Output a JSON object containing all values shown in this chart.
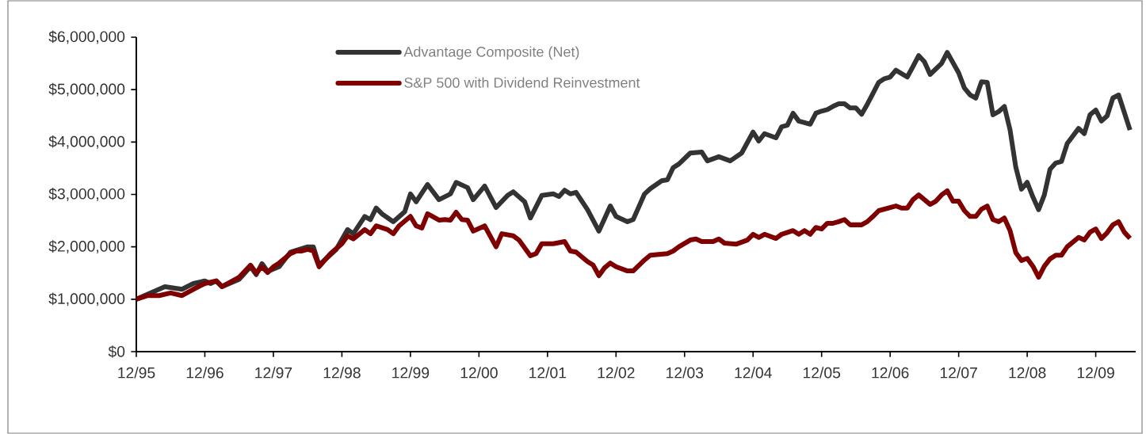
{
  "chart_data": {
    "type": "line",
    "xlim": [
      "1995-12",
      "2010-07"
    ],
    "ylim": [
      0,
      6000000
    ],
    "xticks": [
      {
        "value": "1995-12",
        "label": "12/95"
      },
      {
        "value": "1996-12",
        "label": "12/96"
      },
      {
        "value": "1997-12",
        "label": "12/97"
      },
      {
        "value": "1998-12",
        "label": "12/98"
      },
      {
        "value": "1999-12",
        "label": "12/99"
      },
      {
        "value": "2000-12",
        "label": "12/00"
      },
      {
        "value": "2001-12",
        "label": "12/01"
      },
      {
        "value": "2002-12",
        "label": "12/02"
      },
      {
        "value": "2003-12",
        "label": "12/03"
      },
      {
        "value": "2004-12",
        "label": "12/04"
      },
      {
        "value": "2005-12",
        "label": "12/05"
      },
      {
        "value": "2006-12",
        "label": "12/06"
      },
      {
        "value": "2007-12",
        "label": "12/07"
      },
      {
        "value": "2008-12",
        "label": "12/08"
      },
      {
        "value": "2009-12",
        "label": "12/09"
      }
    ],
    "yticks": [
      {
        "value": 0,
        "label": "$0"
      },
      {
        "value": 1000000,
        "label": "$1,000,000"
      },
      {
        "value": 2000000,
        "label": "$2,000,000"
      },
      {
        "value": 3000000,
        "label": "$3,000,000"
      },
      {
        "value": 4000000,
        "label": "$4,000,000"
      },
      {
        "value": 5000000,
        "label": "$5,000,000"
      },
      {
        "value": 6000000,
        "label": "$6,000,000"
      }
    ],
    "legend": "top",
    "series": [
      {
        "name": "Advantage Composite (Net)",
        "color": "#333333",
        "x": [
          "1995-12",
          "1996-05",
          "1996-08",
          "1996-10",
          "1996-12",
          "1997-01",
          "1997-02",
          "1997-03",
          "1997-06",
          "1997-08",
          "1997-09",
          "1997-10",
          "1997-11",
          "1998-01",
          "1998-03",
          "1998-06",
          "1998-07",
          "1998-08",
          "1998-11",
          "1999-01",
          "1999-02",
          "1999-04",
          "1999-05",
          "1999-06",
          "1999-07",
          "1999-09",
          "1999-11",
          "1999-12",
          "2000-01",
          "2000-03",
          "2000-05",
          "2000-07",
          "2000-08",
          "2000-10",
          "2000-11",
          "2001-01",
          "2001-03",
          "2001-05",
          "2001-06",
          "2001-08",
          "2001-09",
          "2001-11",
          "2002-01",
          "2002-02",
          "2002-03",
          "2002-04",
          "2002-05",
          "2002-07",
          "2002-09",
          "2002-11",
          "2002-12",
          "2003-02",
          "2003-03",
          "2003-05",
          "2003-06",
          "2003-08",
          "2003-09",
          "2003-10",
          "2003-11",
          "2004-01",
          "2004-03",
          "2004-04",
          "2004-06",
          "2004-08",
          "2004-10",
          "2004-12",
          "2005-01",
          "2005-02",
          "2005-04",
          "2005-05",
          "2005-06",
          "2005-07",
          "2005-08",
          "2005-10",
          "2005-11",
          "2005-12",
          "2006-01",
          "2006-02",
          "2006-03",
          "2006-04",
          "2006-05",
          "2006-06",
          "2006-07",
          "2006-08",
          "2006-09",
          "2006-10",
          "2006-11",
          "2006-12",
          "2007-01",
          "2007-03",
          "2007-04",
          "2007-05",
          "2007-06",
          "2007-07",
          "2007-09",
          "2007-10",
          "2007-12",
          "2008-01",
          "2008-02",
          "2008-03",
          "2008-04",
          "2008-05",
          "2008-06",
          "2008-07",
          "2008-08",
          "2008-09",
          "2008-10",
          "2008-11",
          "2008-12",
          "2009-01",
          "2009-02",
          "2009-03",
          "2009-04",
          "2009-05",
          "2009-06",
          "2009-07",
          "2009-09",
          "2009-10",
          "2009-11",
          "2009-12",
          "2010-01",
          "2010-02",
          "2010-03",
          "2010-04",
          "2010-06"
        ],
        "values": [
          1000000,
          1240000,
          1190000,
          1300000,
          1350000,
          1300000,
          1350000,
          1240000,
          1380000,
          1620000,
          1470000,
          1680000,
          1530000,
          1620000,
          1900000,
          2000000,
          2000000,
          1650000,
          1950000,
          2330000,
          2250000,
          2580000,
          2520000,
          2740000,
          2630000,
          2480000,
          2670000,
          3010000,
          2860000,
          3190000,
          2900000,
          3010000,
          3230000,
          3130000,
          2900000,
          3160000,
          2750000,
          2980000,
          3050000,
          2860000,
          2550000,
          2980000,
          3010000,
          2960000,
          3080000,
          3010000,
          3040000,
          2710000,
          2300000,
          2780000,
          2580000,
          2480000,
          2520000,
          3010000,
          3110000,
          3260000,
          3280000,
          3510000,
          3580000,
          3790000,
          3810000,
          3640000,
          3720000,
          3640000,
          3790000,
          4190000,
          4020000,
          4160000,
          4080000,
          4290000,
          4320000,
          4550000,
          4400000,
          4340000,
          4550000,
          4590000,
          4620000,
          4680000,
          4730000,
          4730000,
          4650000,
          4650000,
          4530000,
          4720000,
          4930000,
          5140000,
          5210000,
          5240000,
          5370000,
          5240000,
          5440000,
          5650000,
          5530000,
          5290000,
          5500000,
          5710000,
          5320000,
          5030000,
          4900000,
          4840000,
          5150000,
          5140000,
          4520000,
          4580000,
          4680000,
          4230000,
          3520000,
          3100000,
          3230000,
          2950000,
          2710000,
          2990000,
          3480000,
          3600000,
          3630000,
          3970000,
          4260000,
          4160000,
          4520000,
          4610000,
          4400000,
          4500000,
          4840000,
          4900000,
          4230000
        ]
      },
      {
        "name": "S&P 500 with Dividend Reinvestment",
        "color": "#7f0000",
        "x": [
          "1995-12",
          "1996-02",
          "1996-04",
          "1996-06",
          "1996-08",
          "1996-10",
          "1996-12",
          "1997-02",
          "1997-03",
          "1997-06",
          "1997-08",
          "1997-09",
          "1997-10",
          "1997-11",
          "1997-12",
          "1998-01",
          "1998-03",
          "1998-04",
          "1998-05",
          "1998-06",
          "1998-07",
          "1998-08",
          "1998-10",
          "1998-12",
          "1999-01",
          "1999-02",
          "1999-04",
          "1999-05",
          "1999-06",
          "1999-08",
          "1999-09",
          "1999-10",
          "1999-12",
          "2000-01",
          "2000-02",
          "2000-03",
          "2000-05",
          "2000-06",
          "2000-07",
          "2000-08",
          "2000-09",
          "2000-10",
          "2000-11",
          "2001-01",
          "2001-03",
          "2001-04",
          "2001-06",
          "2001-07",
          "2001-09",
          "2001-10",
          "2001-11",
          "2002-01",
          "2002-03",
          "2002-04",
          "2002-05",
          "2002-07",
          "2002-08",
          "2002-09",
          "2002-10",
          "2002-11",
          "2002-12",
          "2003-02",
          "2003-03",
          "2003-05",
          "2003-06",
          "2003-09",
          "2003-10",
          "2003-11",
          "2004-01",
          "2004-02",
          "2004-03",
          "2004-05",
          "2004-06",
          "2004-07",
          "2004-09",
          "2004-11",
          "2004-12",
          "2005-01",
          "2005-02",
          "2005-04",
          "2005-05",
          "2005-07",
          "2005-08",
          "2005-09",
          "2005-10",
          "2005-11",
          "2005-12",
          "2006-01",
          "2006-02",
          "2006-03",
          "2006-04",
          "2006-05",
          "2006-07",
          "2006-08",
          "2006-09",
          "2006-10",
          "2007-01",
          "2007-02",
          "2007-03",
          "2007-04",
          "2007-05",
          "2007-07",
          "2007-08",
          "2007-09",
          "2007-10",
          "2007-11",
          "2007-12",
          "2008-01",
          "2008-02",
          "2008-03",
          "2008-04",
          "2008-05",
          "2008-06",
          "2008-07",
          "2008-08",
          "2008-09",
          "2008-10",
          "2008-11",
          "2008-12",
          "2009-01",
          "2009-02",
          "2009-03",
          "2009-04",
          "2009-05",
          "2009-06",
          "2009-07",
          "2009-09",
          "2009-10",
          "2009-11",
          "2009-12",
          "2010-01",
          "2010-02",
          "2010-03",
          "2010-04",
          "2010-05",
          "2010-06"
        ],
        "values": [
          1000000,
          1070000,
          1070000,
          1120000,
          1070000,
          1190000,
          1300000,
          1350000,
          1240000,
          1420000,
          1650000,
          1500000,
          1620000,
          1510000,
          1620000,
          1690000,
          1870000,
          1920000,
          1920000,
          1950000,
          1920000,
          1620000,
          1870000,
          2060000,
          2210000,
          2150000,
          2330000,
          2250000,
          2400000,
          2330000,
          2250000,
          2400000,
          2580000,
          2400000,
          2360000,
          2630000,
          2510000,
          2520000,
          2510000,
          2660000,
          2520000,
          2510000,
          2300000,
          2400000,
          2000000,
          2250000,
          2210000,
          2130000,
          1830000,
          1870000,
          2060000,
          2060000,
          2100000,
          1920000,
          1900000,
          1720000,
          1650000,
          1450000,
          1600000,
          1690000,
          1620000,
          1540000,
          1540000,
          1750000,
          1840000,
          1870000,
          1920000,
          2000000,
          2130000,
          2150000,
          2100000,
          2100000,
          2150000,
          2070000,
          2050000,
          2130000,
          2240000,
          2180000,
          2240000,
          2160000,
          2240000,
          2310000,
          2240000,
          2310000,
          2240000,
          2370000,
          2340000,
          2450000,
          2450000,
          2480000,
          2520000,
          2420000,
          2420000,
          2480000,
          2580000,
          2690000,
          2780000,
          2740000,
          2740000,
          2900000,
          2990000,
          2810000,
          2870000,
          2990000,
          3070000,
          2870000,
          2870000,
          2690000,
          2580000,
          2580000,
          2720000,
          2780000,
          2520000,
          2480000,
          2550000,
          2310000,
          1890000,
          1740000,
          1780000,
          1630000,
          1420000,
          1630000,
          1770000,
          1840000,
          1840000,
          2000000,
          2180000,
          2130000,
          2280000,
          2340000,
          2160000,
          2270000,
          2420000,
          2480000,
          2280000,
          2160000
        ]
      }
    ]
  }
}
